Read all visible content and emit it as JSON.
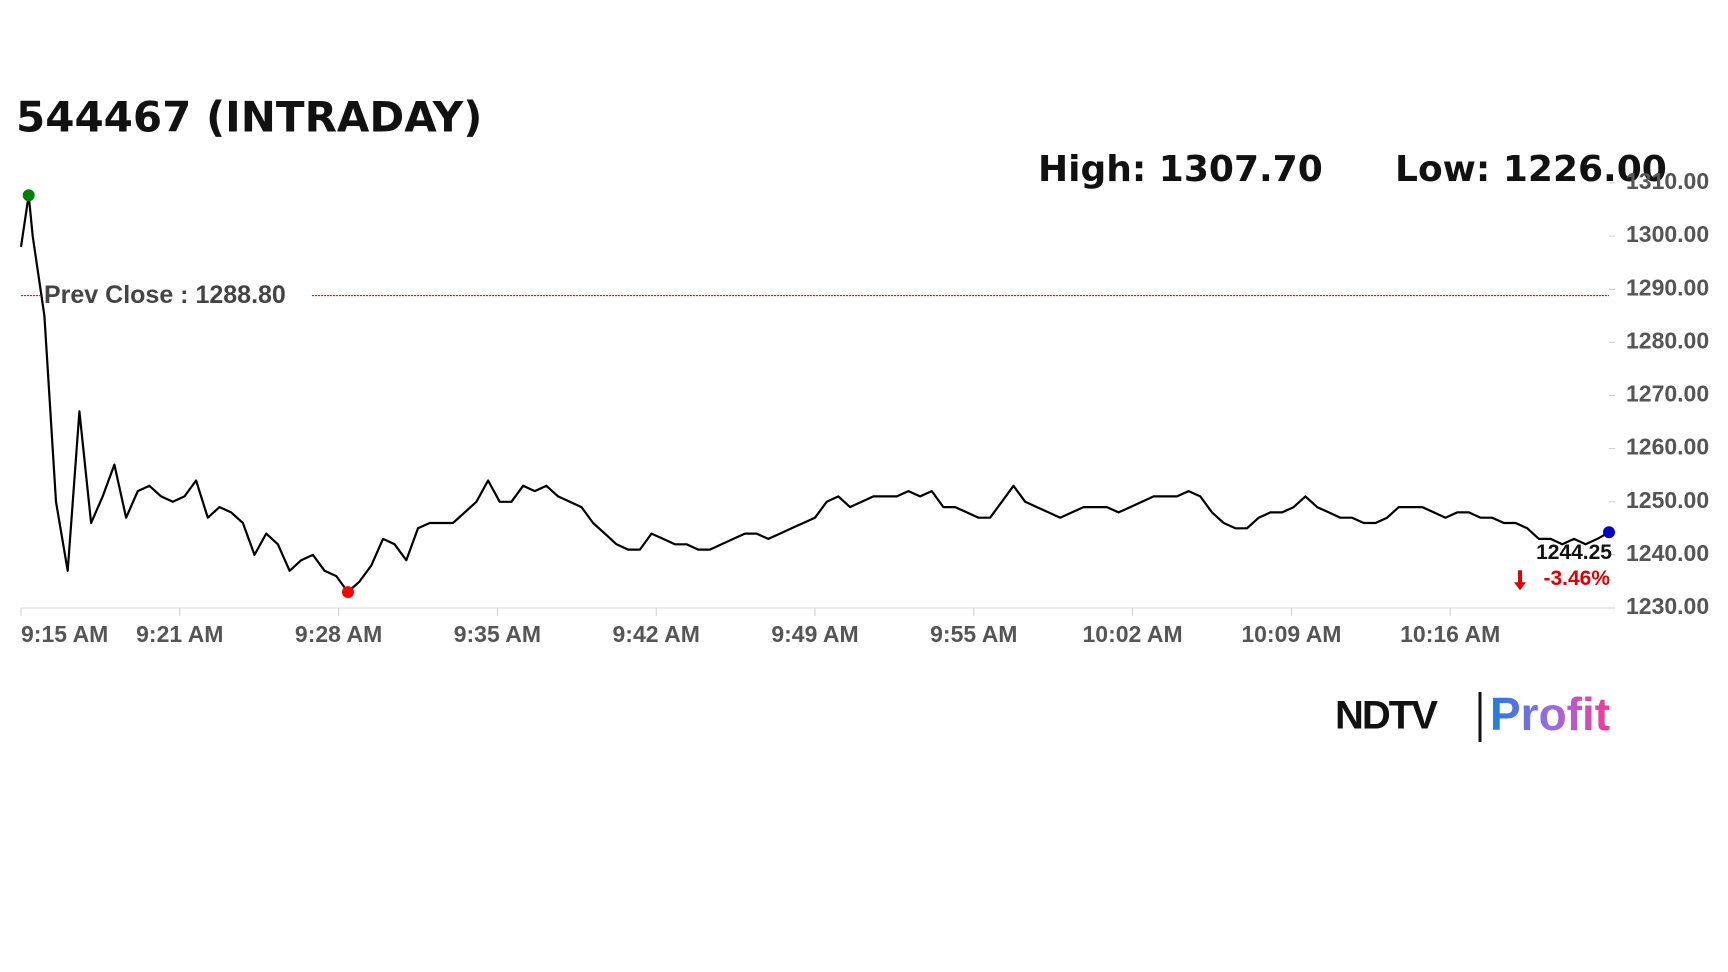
{
  "chart_data": {
    "type": "line",
    "title": "544467 (INTRADAY)",
    "high_label": "High: 1307.70",
    "low_label": "Low: 1226.00",
    "prev_close": 1288.8,
    "prev_close_label": "Prev Close : 1288.80",
    "prev_close_color": "#cc0000",
    "change_label": "-3.46%",
    "change_color": "#e00000",
    "color": "#000000",
    "high_color": "#008000",
    "low_color": "#ff0000",
    "last_color": "#0000cc",
    "x": [
      0,
      0.33,
      0.5,
      1,
      1.5,
      2,
      2.5,
      3,
      3.5,
      4,
      4.5,
      5,
      5.5,
      6,
      6.5,
      7,
      7.5,
      8,
      8.5,
      9,
      9.5,
      10,
      10.5,
      11,
      11.5,
      12,
      12.5,
      13,
      13.5,
      14,
      14.5,
      15,
      15.5,
      16,
      16.5,
      17,
      17.5,
      18,
      18.5,
      19,
      19.5,
      20,
      20.5,
      21,
      21.5,
      22,
      22.5,
      23,
      23.5,
      24,
      24.5,
      25,
      25.5,
      26,
      26.5,
      27,
      27.5,
      28,
      28.5,
      29,
      29.5,
      30,
      30.5,
      31,
      31.5,
      32,
      32.5,
      33,
      33.5,
      34,
      34.5,
      35,
      35.5,
      36,
      36.5,
      37,
      37.5,
      38,
      38.5,
      39,
      39.5,
      40,
      40.5,
      41,
      41.5,
      42,
      42.5,
      43,
      43.5,
      44,
      44.5,
      45,
      45.5,
      46,
      46.5,
      47,
      47.5,
      48,
      48.5,
      49,
      49.5,
      50,
      50.5,
      51,
      51.5,
      52,
      52.5,
      53,
      53.5,
      54,
      54.5,
      55,
      55.5,
      56,
      56.5,
      57,
      57.5,
      58,
      58.5,
      59,
      59.5,
      60,
      60.5,
      61,
      61.5,
      62,
      62.5,
      63,
      63.5,
      64,
      64.5,
      65,
      65.5,
      66,
      66.5,
      67,
      67.5,
      68
    ],
    "values": [
      1298,
      1307.7,
      1300,
      1285,
      1250,
      1237,
      1267,
      1246,
      1251,
      1257,
      1247,
      1252,
      1253,
      1251,
      1250,
      1251,
      1254,
      1247,
      1249,
      1248,
      1246,
      1240,
      1244,
      1242,
      1237,
      1239,
      1240,
      1237,
      1236,
      1233,
      1235,
      1238,
      1243,
      1242,
      1239,
      1245,
      1246,
      1246,
      1246,
      1248,
      1250,
      1254,
      1250,
      1250,
      1253,
      1252,
      1253,
      1251,
      1250,
      1249,
      1246,
      1244,
      1242,
      1241,
      1241,
      1244,
      1243,
      1242,
      1242,
      1241,
      1241,
      1242,
      1243,
      1244,
      1244,
      1243,
      1244,
      1245,
      1246,
      1247,
      1250,
      1251,
      1249,
      1250,
      1251,
      1251,
      1251,
      1252,
      1251,
      1252,
      1249,
      1249,
      1248,
      1247,
      1247,
      1250,
      1253,
      1250,
      1249,
      1248,
      1247,
      1248,
      1249,
      1249,
      1249,
      1248,
      1249,
      1250,
      1251,
      1251,
      1251,
      1252,
      1251,
      1248,
      1246,
      1245,
      1245,
      1247,
      1248,
      1248,
      1249,
      1251,
      1249,
      1248,
      1247,
      1247,
      1246,
      1246,
      1247,
      1249,
      1249,
      1249,
      1248,
      1247,
      1248,
      1248,
      1247,
      1247,
      1246,
      1246,
      1245,
      1243,
      1243,
      1242,
      1243,
      1242,
      1243,
      1244.25
    ],
    "xlim": [
      0,
      68
    ],
    "xticks": [
      {
        "value": 0,
        "label": "9:15 AM"
      },
      {
        "value": 6.8,
        "label": "9:21 AM"
      },
      {
        "value": 13.6,
        "label": "9:28 AM"
      },
      {
        "value": 20.4,
        "label": "9:35 AM"
      },
      {
        "value": 27.2,
        "label": "9:42 AM"
      },
      {
        "value": 34,
        "label": "9:49 AM"
      },
      {
        "value": 40.8,
        "label": "9:55 AM"
      },
      {
        "value": 47.6,
        "label": "10:02 AM"
      },
      {
        "value": 54.4,
        "label": "10:09 AM"
      },
      {
        "value": 61.2,
        "label": "10:16 AM"
      }
    ],
    "ylim": [
      1230,
      1310
    ],
    "yticks": [
      {
        "value": 1230,
        "label": "1230.00"
      },
      {
        "value": 1240,
        "label": "1240.00"
      },
      {
        "value": 1250,
        "label": "1250.00"
      },
      {
        "value": 1260,
        "label": "1260.00"
      },
      {
        "value": 1270,
        "label": "1270.00"
      },
      {
        "value": 1280,
        "label": "1280.00"
      },
      {
        "value": 1290,
        "label": "1290.00"
      },
      {
        "value": 1300,
        "label": "1300.00"
      },
      {
        "value": 1310,
        "label": "1310.00"
      }
    ],
    "logo": {
      "brand": "NDTV",
      "product": "Profit"
    }
  }
}
